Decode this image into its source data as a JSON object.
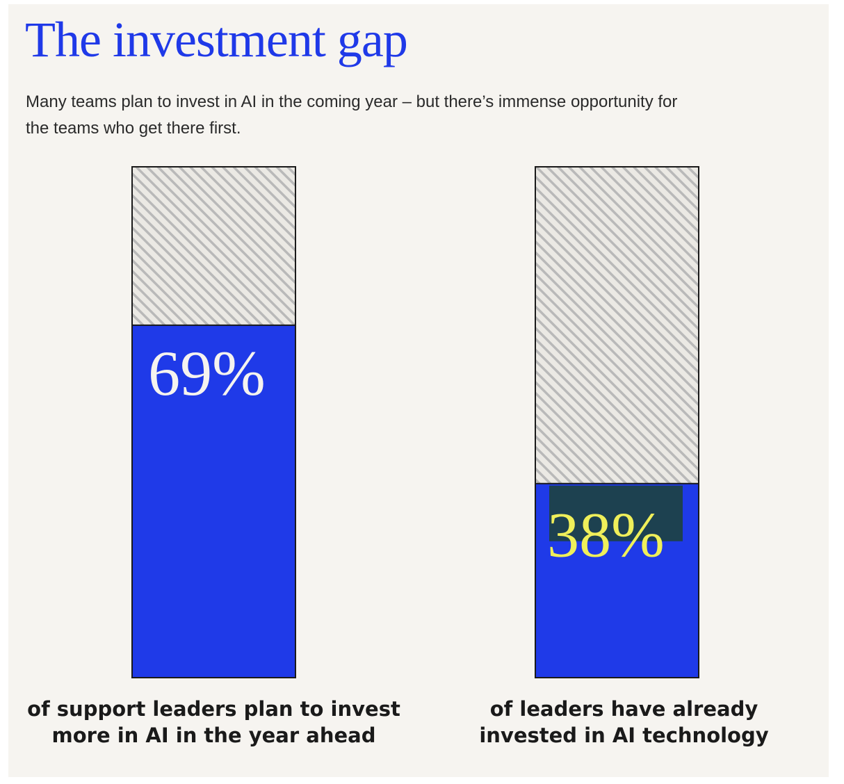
{
  "title": "The investment gap",
  "subtitle": "Many teams plan to invest in AI in the coming year – but there’s immense opportunity for the teams who get there first.",
  "colors": {
    "background": "#f6f4f0",
    "title": "#1f39e8",
    "bar_fill": "#1f3ae8",
    "hatch_stripe": "#b9b9b9",
    "highlight": "#1d4150",
    "highlight_text": "#efef5a",
    "value_text": "#f5f3ef"
  },
  "chart_data": {
    "type": "bar",
    "unit": "%",
    "ylim": [
      0,
      100
    ],
    "grid": false,
    "categories": [
      "of support leaders plan to invest more in AI in the year ahead",
      "of leaders have already invested in AI technology"
    ],
    "values": [
      69,
      38
    ],
    "labels": [
      "69%",
      "38%"
    ],
    "caption_lines": [
      [
        "of support leaders plan to invest",
        "more in AI in the year ahead"
      ],
      [
        "of leaders have already",
        "invested in AI technology"
      ]
    ]
  }
}
